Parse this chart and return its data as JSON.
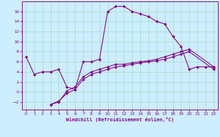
{
  "background_color": "#cceeff",
  "grid_color": "#aaddcc",
  "line_color": "#880088",
  "xlabel": "Windchill (Refroidissement éolien,°C)",
  "xlim": [
    -0.5,
    23.5
  ],
  "ylim": [
    -3.5,
    18
  ],
  "xticks": [
    0,
    1,
    2,
    3,
    4,
    5,
    6,
    7,
    8,
    9,
    10,
    11,
    12,
    13,
    14,
    15,
    16,
    17,
    18,
    19,
    20,
    21,
    22,
    23
  ],
  "yticks": [
    -2,
    0,
    2,
    4,
    6,
    8,
    10,
    12,
    14,
    16
  ],
  "series1_x": [
    0,
    1,
    2,
    3,
    4,
    5,
    6,
    7,
    8,
    9,
    10,
    11,
    12,
    13,
    14,
    15,
    16,
    17,
    18,
    19,
    20,
    21,
    22,
    23
  ],
  "series1_y": [
    7,
    3.5,
    4,
    4,
    4.5,
    1,
    0.5,
    6,
    6,
    6.5,
    16,
    17,
    17,
    16,
    15.5,
    15,
    14,
    13.5,
    11,
    9,
    4.5,
    5,
    5,
    5
  ],
  "series2_x": [
    3,
    4,
    5,
    6,
    7,
    8,
    9,
    10,
    11,
    12,
    13,
    14,
    15,
    16,
    17,
    18,
    19,
    20,
    23
  ],
  "series2_y": [
    -2.5,
    -2.0,
    0.2,
    1.0,
    3.0,
    4.0,
    4.5,
    5.0,
    5.5,
    5.5,
    5.8,
    6.0,
    6.2,
    6.5,
    7.0,
    7.5,
    8.0,
    8.5,
    5.0
  ],
  "series3_x": [
    3,
    4,
    5,
    6,
    7,
    8,
    9,
    10,
    11,
    12,
    13,
    14,
    15,
    16,
    17,
    18,
    19,
    20,
    23
  ],
  "series3_y": [
    -2.5,
    -1.8,
    -0.3,
    0.5,
    2.5,
    3.5,
    4.0,
    4.5,
    5.0,
    5.2,
    5.5,
    5.8,
    6.0,
    6.2,
    6.5,
    7.0,
    7.5,
    8.0,
    4.5
  ]
}
